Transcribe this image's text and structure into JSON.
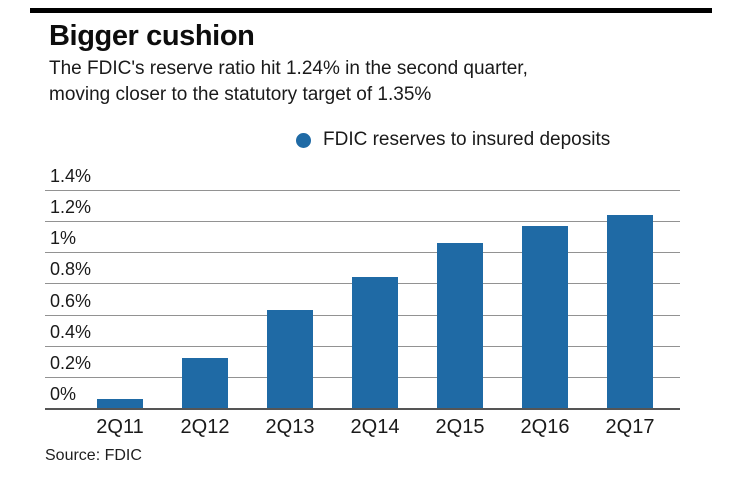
{
  "header": {
    "title": "Bigger cushion",
    "subtitle_line1": "The FDIC's reserve ratio hit 1.24% in the second quarter,",
    "subtitle_line2": "moving closer to the statutory target of 1.35%"
  },
  "legend": {
    "label": "FDIC reserves to insured deposits",
    "marker_color": "#1f6aa5"
  },
  "source": {
    "text": "Source: FDIC"
  },
  "chart_data": {
    "type": "bar",
    "title": "Bigger cushion",
    "subtitle": "The FDIC's reserve ratio hit 1.24% in the second quarter, moving closer to the statutory target of 1.35%",
    "series_name": "FDIC reserves to insured deposits",
    "categories": [
      "2Q11",
      "2Q12",
      "2Q13",
      "2Q14",
      "2Q15",
      "2Q16",
      "2Q17"
    ],
    "values": [
      0.06,
      0.32,
      0.63,
      0.84,
      1.06,
      1.17,
      1.24
    ],
    "unit": "%",
    "xlabel": "",
    "ylabel": "",
    "ylim": [
      0,
      1.4
    ],
    "yticks": [
      {
        "value": 1.4,
        "label": "1.4%"
      },
      {
        "value": 1.2,
        "label": "1.2%"
      },
      {
        "value": 1.0,
        "label": "1%"
      },
      {
        "value": 0.8,
        "label": "0.8%"
      },
      {
        "value": 0.6,
        "label": "0.6%"
      },
      {
        "value": 0.4,
        "label": "0.4%"
      },
      {
        "value": 0.2,
        "label": "0.2%"
      },
      {
        "value": 0,
        "label": "0%"
      }
    ],
    "grid": true,
    "legend_position": "top",
    "source": "Source: FDIC"
  },
  "style": {
    "bar_color": "#1f6aa5",
    "grid_color": "#929292",
    "axis_color": "#555555",
    "text_color": "#1a1a1a",
    "top_rule_color": "#000000"
  }
}
